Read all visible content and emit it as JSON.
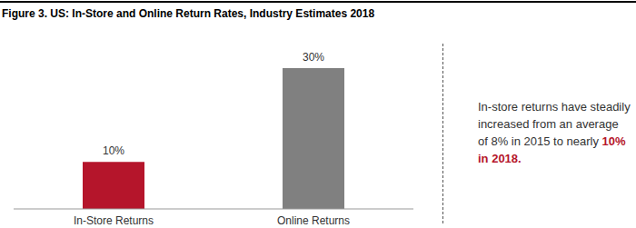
{
  "chart_data": {
    "type": "bar",
    "title": "Figure 3. US: In-Store and Online Return Rates, Industry Estimates 2018",
    "categories": [
      "In-Store Returns",
      "Online Returns"
    ],
    "values": [
      10,
      30
    ],
    "value_labels": [
      "10%",
      "30%"
    ],
    "colors": [
      "#b5152b",
      "#808080"
    ],
    "ylim": [
      0,
      30
    ],
    "yticks": [
      0,
      30
    ],
    "grid": false,
    "data_labels": true,
    "tick_labels": "x",
    "annotation": [
      "In-store returns have steadily increased from an average of 8% in 2015 to nearly",
      "10% in 2018."
    ]
  }
}
